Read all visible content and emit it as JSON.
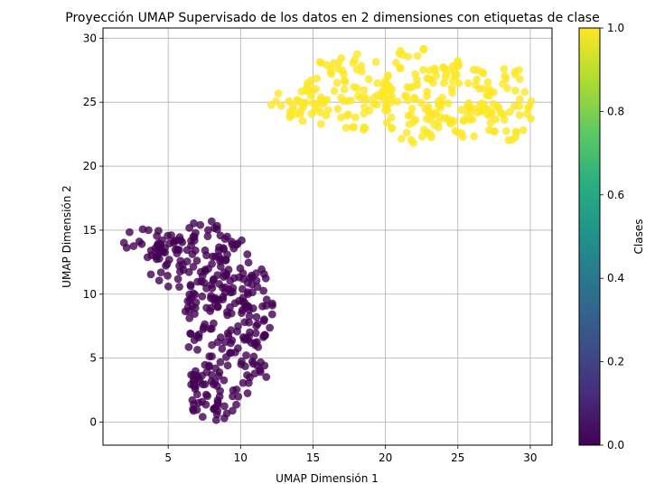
{
  "chart_data": {
    "type": "scatter",
    "title": "Proyección UMAP Supervisado de los datos en 2 dimensiones con etiquetas de clase",
    "xlabel": "UMAP Dimensión 1",
    "ylabel": "UMAP Dimensión 2",
    "xlim": [
      0.5,
      31.5
    ],
    "ylim": [
      -1.8,
      30.8
    ],
    "xticks": [
      5,
      10,
      15,
      20,
      25,
      30
    ],
    "yticks": [
      0,
      5,
      10,
      15,
      20,
      25,
      30
    ],
    "grid": true,
    "colormap": "viridis",
    "marker_alpha": 0.8,
    "colorbar": {
      "label": "Clases",
      "range": [
        0.0,
        1.0
      ],
      "ticks": [
        "0.0",
        "0.2",
        "0.4",
        "0.6",
        "0.8",
        "1.0"
      ]
    },
    "series": [
      {
        "class_value": 0,
        "color": "#440154",
        "regions": [
          {
            "x_range": [
              1.5,
              5.5
            ],
            "y_range": [
              12.8,
              15.4
            ]
          },
          {
            "x_range": [
              3.5,
              7.0
            ],
            "y_range": [
              10.5,
              14.8
            ]
          },
          {
            "x_range": [
              5.5,
              9.8
            ],
            "y_range": [
              8.0,
              15.9
            ]
          },
          {
            "x_range": [
              8.5,
              11.0
            ],
            "y_range": [
              9.0,
              14.3
            ]
          },
          {
            "x_range": [
              9.5,
              12.3
            ],
            "y_range": [
              6.0,
              12.4
            ]
          },
          {
            "x_range": [
              5.8,
              9.5
            ],
            "y_range": [
              5.0,
              10.5
            ]
          },
          {
            "x_range": [
              9.0,
              12.0
            ],
            "y_range": [
              2.0,
              8.5
            ]
          },
          {
            "x_range": [
              6.5,
              10.0
            ],
            "y_range": [
              0.0,
              5.0
            ]
          },
          {
            "x_range": [
              6.3,
              8.6
            ],
            "y_range": [
              0.2,
              4.8
            ]
          }
        ]
      },
      {
        "class_value": 1,
        "color": "#fde725",
        "regions": [
          {
            "x_range": [
              11.6,
              16.0
            ],
            "y_range": [
              23.3,
              26.1
            ]
          },
          {
            "x_range": [
              14.5,
              20.5
            ],
            "y_range": [
              22.5,
              29.0
            ]
          },
          {
            "x_range": [
              19.5,
              24.5
            ],
            "y_range": [
              21.8,
              29.4
            ]
          },
          {
            "x_range": [
              23.5,
              27.5
            ],
            "y_range": [
              21.8,
              28.8
            ]
          },
          {
            "x_range": [
              26.5,
              30.3
            ],
            "y_range": [
              22.0,
              27.8
            ]
          }
        ]
      }
    ]
  }
}
